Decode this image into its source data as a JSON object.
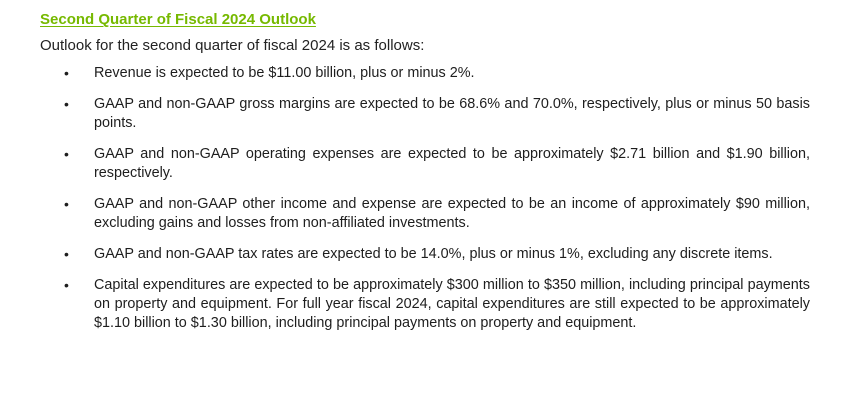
{
  "document": {
    "heading": "Second Quarter of Fiscal 2024 Outlook",
    "intro": "Outlook for the second quarter of fiscal 2024 is as follows:",
    "bullet_glyph": "•",
    "accent_color": "#76b900",
    "items": [
      "Revenue is expected to be $11.00 billion, plus or minus 2%.",
      "GAAP and non-GAAP gross margins are expected to be 68.6% and 70.0%, respectively, plus or minus 50 basis points.",
      "GAAP and non-GAAP operating expenses are expected to be approximately $2.71 billion and $1.90 billion, respectively.",
      "GAAP and non-GAAP other income and expense are expected to be an income of approximately $90 million, excluding gains and losses from non-affiliated investments.",
      "GAAP and non-GAAP tax rates are expected to be 14.0%, plus or minus 1%, excluding any discrete items.",
      "Capital expenditures are expected to be approximately $300 million to $350 million, including principal payments on property and equipment. For full year fiscal 2024, capital expenditures are still expected to be approximately $1.10 billion to $1.30 billion, including principal payments on property and equipment."
    ]
  }
}
